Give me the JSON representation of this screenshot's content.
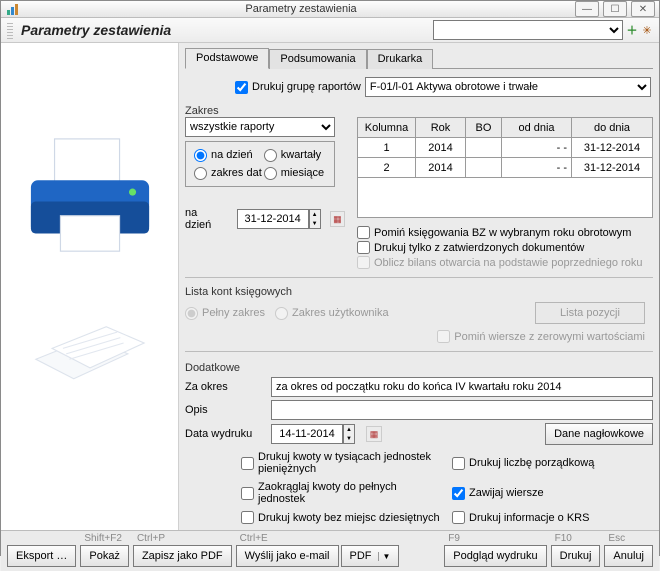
{
  "window": {
    "title": "Parametry zestawienia"
  },
  "header": {
    "title": "Parametry zestawienia",
    "preset_value": ""
  },
  "tabs": {
    "t0": "Podstawowe",
    "t1": "Podsumowania",
    "t2": "Drukarka"
  },
  "drukuj_grupe": {
    "label": "Drukuj grupę raportów",
    "value": "F-01/l-01 Aktywa obrotowe i trwałe",
    "checked": true
  },
  "zakres": {
    "label": "Zakres",
    "select_value": "wszystkie raporty",
    "radios": {
      "na_dzien": "na dzień",
      "kwartaly": "kwartały",
      "zakres_dat": "zakres dat",
      "miesiace": "miesiące"
    },
    "selected": "na_dzien",
    "na_dzien_label": "na dzień",
    "na_dzien_value": "31-12-2014"
  },
  "grid": {
    "columns": {
      "c0": "Kolumna",
      "c1": "Rok",
      "c2": "BO",
      "c3": "od dnia",
      "c4": "do dnia"
    },
    "rows": [
      {
        "kol": "1",
        "rok": "2014",
        "bo": "",
        "od": "- -",
        "do": "31-12-2014"
      },
      {
        "kol": "2",
        "rok": "2014",
        "bo": "",
        "od": "- -",
        "do": "31-12-2014"
      }
    ],
    "col_widths": [
      "58px",
      "50px",
      "36px",
      "70px",
      "82px"
    ],
    "header_bg": "#ebebeb",
    "cell_bg": "#ffffff",
    "border_color": "#9a9a9a"
  },
  "underGrid": {
    "c1": "Pomiń księgowania BZ w wybranym roku obrotowym",
    "c2": "Drukuj tylko z zatwierdzonych dokumentów",
    "c3": "Oblicz bilans otwarcia na podstawie poprzedniego roku",
    "c3_disabled": true
  },
  "lista_kont": {
    "label": "Lista kont księgowych",
    "r1": "Pełny zakres",
    "r2": "Zakres użytkownika",
    "btn": "Lista pozycji",
    "chk": "Pomiń wiersze z zerowymi wartościami"
  },
  "dodatkowe": {
    "label": "Dodatkowe",
    "za_okres_lbl": "Za okres",
    "za_okres_val": "za okres od początku roku do końca IV kwartału roku 2014",
    "opis_lbl": "Opis",
    "opis_val": "",
    "data_wydruku_lbl": "Data wydruku",
    "data_wydruku_val": "14-11-2014",
    "dane_naglowkowe": "Dane nagłowkowe",
    "checks": {
      "c1": "Drukuj kwoty w tysiącach jednostek pieniężnych",
      "c2": "Drukuj liczbę porządkową",
      "c3": "Zaokrąglaj kwoty do pełnych jednostek",
      "c4": "Zawijaj wiersze",
      "c5": "Drukuj kwoty bez miejsc dziesiętnych",
      "c6": "Drukuj informacje o KRS",
      "c4_checked": true
    }
  },
  "bottom": {
    "eksport": "Eksport …",
    "eksport_hint": "",
    "pokaz": "Pokaż",
    "pokaz_hint": "Shift+F2",
    "pdf": "Zapisz jako PDF",
    "pdf_hint": "Ctrl+P",
    "email": "Wyślij jako e-mail",
    "email_hint": "Ctrl+E",
    "email_fmt": "PDF",
    "podglad": "Podgląd wydruku",
    "podglad_hint": "F9",
    "drukuj": "Drukuj",
    "drukuj_hint": "F10",
    "anuluj": "Anuluj",
    "anuluj_hint": "Esc"
  },
  "colors": {
    "accent": "#0b63c4",
    "window_bg": "#ebebeb",
    "border": "#9a9a9a",
    "disabled_text": "#999999"
  }
}
